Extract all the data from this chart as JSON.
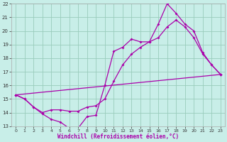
{
  "xlabel": "Windchill (Refroidissement éolien,°C)",
  "background_color": "#c8eee8",
  "line_color": "#aa00aa",
  "grid_color": "#99ccbb",
  "xlim": [
    -0.5,
    23.5
  ],
  "ylim": [
    13,
    22
  ],
  "xticks": [
    0,
    1,
    2,
    3,
    4,
    5,
    6,
    7,
    8,
    9,
    10,
    11,
    12,
    13,
    14,
    15,
    16,
    17,
    18,
    19,
    20,
    21,
    22,
    23
  ],
  "yticks": [
    13,
    14,
    15,
    16,
    17,
    18,
    19,
    20,
    21,
    22
  ],
  "line1_x": [
    0,
    1,
    2,
    3,
    4,
    5,
    6,
    7,
    8,
    9,
    10,
    11,
    12,
    13,
    14,
    15,
    16,
    17,
    18,
    19,
    20,
    21,
    22,
    23
  ],
  "line1_y": [
    15.3,
    15.0,
    14.4,
    13.9,
    13.5,
    13.3,
    12.85,
    12.85,
    13.7,
    13.8,
    16.0,
    18.5,
    18.8,
    19.4,
    19.2,
    19.2,
    20.5,
    22.0,
    21.3,
    20.5,
    20.0,
    18.4,
    17.5,
    16.8
  ],
  "line2_x": [
    0,
    1,
    2,
    3,
    4,
    5,
    6,
    7,
    8,
    9,
    10,
    11,
    12,
    13,
    14,
    15,
    16,
    17,
    18,
    19,
    20,
    21,
    22,
    23
  ],
  "line2_y": [
    15.3,
    15.0,
    14.4,
    14.0,
    14.2,
    14.2,
    14.1,
    14.1,
    14.4,
    14.5,
    15.0,
    16.3,
    17.5,
    18.3,
    18.8,
    19.2,
    19.5,
    20.3,
    20.8,
    20.3,
    19.5,
    18.3,
    17.5,
    16.8
  ],
  "line3_x": [
    0,
    23
  ],
  "line3_y": [
    15.3,
    16.8
  ]
}
